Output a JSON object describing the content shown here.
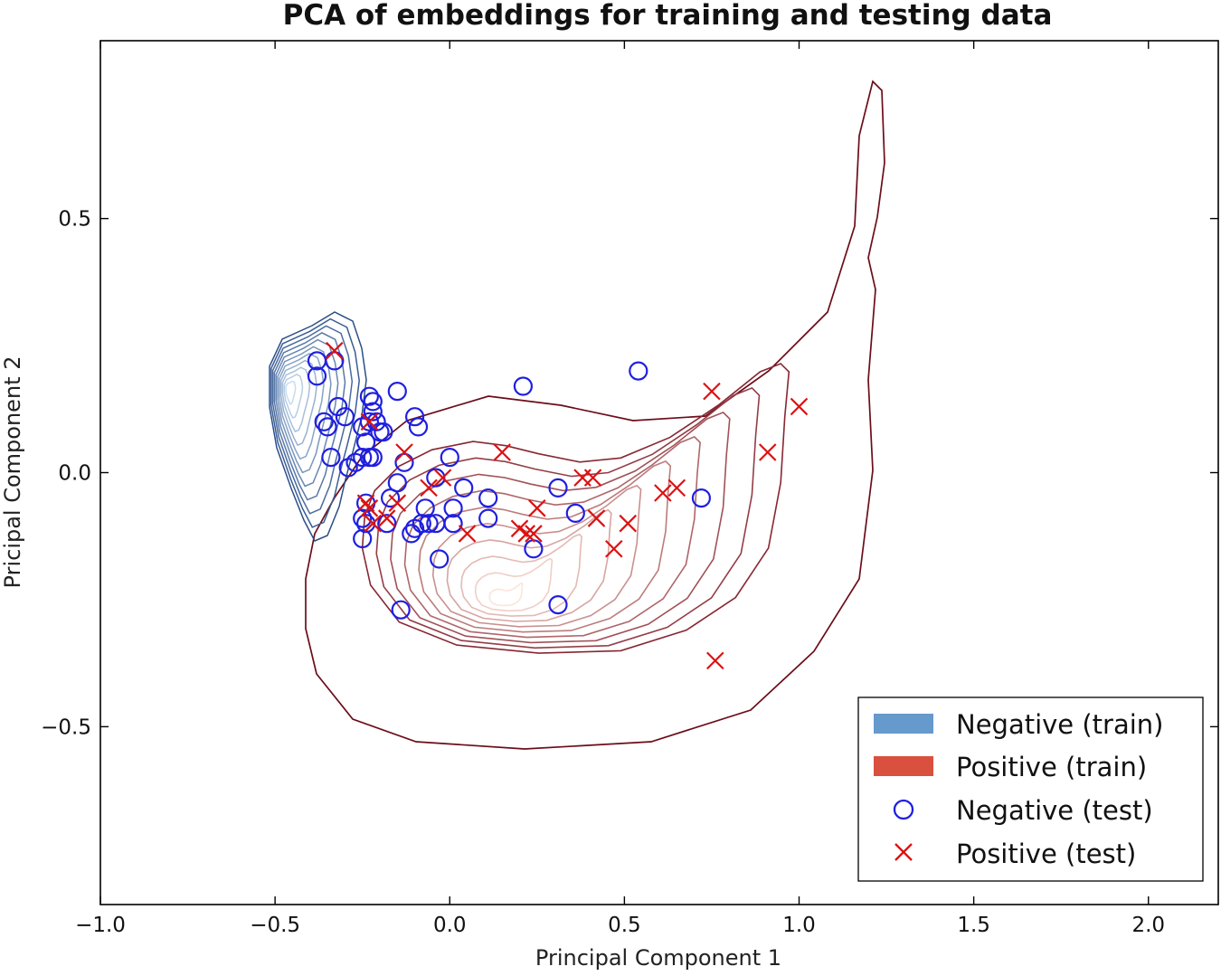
{
  "chart_data": {
    "type": "scatter",
    "title": "PCA of embeddings for training and testing data",
    "xlabel": "Principal Component 1",
    "ylabel": "Pricipal Component 2",
    "xlim": [
      -1.0,
      2.2
    ],
    "ylim": [
      -0.85,
      0.85
    ],
    "xticks": [
      -1.0,
      -0.5,
      0.0,
      0.5,
      1.0,
      1.5,
      2.0
    ],
    "xtick_labels": [
      "−1.0",
      "−0.5",
      "0.0",
      "0.5",
      "1.0",
      "1.5",
      "2.0"
    ],
    "yticks": [
      -0.5,
      0.0,
      0.5
    ],
    "ytick_labels": [
      "−0.5",
      "0.0",
      "0.5"
    ],
    "legend_position": "lower-right",
    "legend": [
      {
        "label": "Negative (train)",
        "kind": "patch",
        "color": "#6699cc"
      },
      {
        "label": "Positive (train)",
        "kind": "patch",
        "color": "#d9503f"
      },
      {
        "label": "Negative (test)",
        "kind": "circle",
        "color": "#1f1fe0"
      },
      {
        "label": "Positive (test)",
        "kind": "cross",
        "color": "#dd1111"
      }
    ],
    "series": [
      {
        "name": "Negative (train)",
        "kind": "kde",
        "levels": 11,
        "center": [
          -0.42,
          0.17
        ],
        "outer_color": "#2b4f8a",
        "inner_color": "#c6dcef"
      },
      {
        "name": "Positive (train)",
        "kind": "kde",
        "levels": 11,
        "center": [
          0.12,
          -0.26
        ],
        "outer_color": "#6b0d1a",
        "inner_color": "#fde4d8"
      },
      {
        "name": "Negative (test)",
        "kind": "circle",
        "color": "#1f1fe0",
        "points": [
          [
            -0.38,
            0.22
          ],
          [
            -0.33,
            0.22
          ],
          [
            -0.38,
            0.19
          ],
          [
            -0.32,
            0.13
          ],
          [
            -0.36,
            0.1
          ],
          [
            -0.35,
            0.09
          ],
          [
            -0.3,
            0.11
          ],
          [
            -0.34,
            0.03
          ],
          [
            -0.29,
            0.01
          ],
          [
            -0.27,
            0.02
          ],
          [
            -0.25,
            0.03
          ],
          [
            -0.23,
            0.03
          ],
          [
            -0.22,
            0.03
          ],
          [
            -0.24,
            0.06
          ],
          [
            -0.25,
            0.09
          ],
          [
            -0.23,
            0.1
          ],
          [
            -0.22,
            0.12
          ],
          [
            -0.21,
            0.1
          ],
          [
            -0.23,
            0.15
          ],
          [
            -0.22,
            0.14
          ],
          [
            -0.2,
            0.08
          ],
          [
            -0.19,
            0.08
          ],
          [
            -0.15,
            0.16
          ],
          [
            -0.1,
            0.11
          ],
          [
            -0.09,
            0.09
          ],
          [
            -0.13,
            0.02
          ],
          [
            -0.15,
            -0.02
          ],
          [
            -0.04,
            -0.01
          ],
          [
            0.0,
            0.03
          ],
          [
            0.04,
            -0.03
          ],
          [
            -0.17,
            -0.05
          ],
          [
            -0.24,
            -0.06
          ],
          [
            -0.25,
            -0.09
          ],
          [
            -0.24,
            -0.1
          ],
          [
            -0.25,
            -0.13
          ],
          [
            -0.18,
            -0.1
          ],
          [
            -0.07,
            -0.07
          ],
          [
            -0.06,
            -0.1
          ],
          [
            -0.08,
            -0.1
          ],
          [
            -0.1,
            -0.11
          ],
          [
            -0.11,
            -0.12
          ],
          [
            -0.04,
            -0.1
          ],
          [
            0.01,
            -0.07
          ],
          [
            0.01,
            -0.1
          ],
          [
            0.11,
            -0.05
          ],
          [
            0.11,
            -0.09
          ],
          [
            -0.03,
            -0.17
          ],
          [
            -0.14,
            -0.27
          ],
          [
            0.21,
            0.17
          ],
          [
            0.54,
            0.2
          ],
          [
            0.31,
            -0.03
          ],
          [
            0.36,
            -0.08
          ],
          [
            0.24,
            -0.15
          ],
          [
            0.31,
            -0.26
          ],
          [
            0.72,
            -0.05
          ]
        ]
      },
      {
        "name": "Positive (test)",
        "kind": "cross",
        "color": "#dd1111",
        "points": [
          [
            -0.33,
            0.24
          ],
          [
            -0.23,
            0.1
          ],
          [
            -0.24,
            -0.06
          ],
          [
            -0.23,
            -0.07
          ],
          [
            -0.22,
            -0.1
          ],
          [
            -0.18,
            -0.09
          ],
          [
            -0.15,
            -0.06
          ],
          [
            -0.13,
            0.04
          ],
          [
            -0.06,
            -0.03
          ],
          [
            -0.02,
            -0.01
          ],
          [
            0.05,
            -0.12
          ],
          [
            0.15,
            0.04
          ],
          [
            0.2,
            -0.11
          ],
          [
            0.22,
            -0.12
          ],
          [
            0.24,
            -0.12
          ],
          [
            0.25,
            -0.07
          ],
          [
            0.38,
            -0.01
          ],
          [
            0.41,
            -0.01
          ],
          [
            0.42,
            -0.09
          ],
          [
            0.47,
            -0.15
          ],
          [
            0.51,
            -0.1
          ],
          [
            0.61,
            -0.04
          ],
          [
            0.65,
            -0.03
          ],
          [
            0.75,
            0.16
          ],
          [
            0.76,
            -0.37
          ],
          [
            0.91,
            0.04
          ],
          [
            1.0,
            0.13
          ]
        ]
      }
    ]
  }
}
